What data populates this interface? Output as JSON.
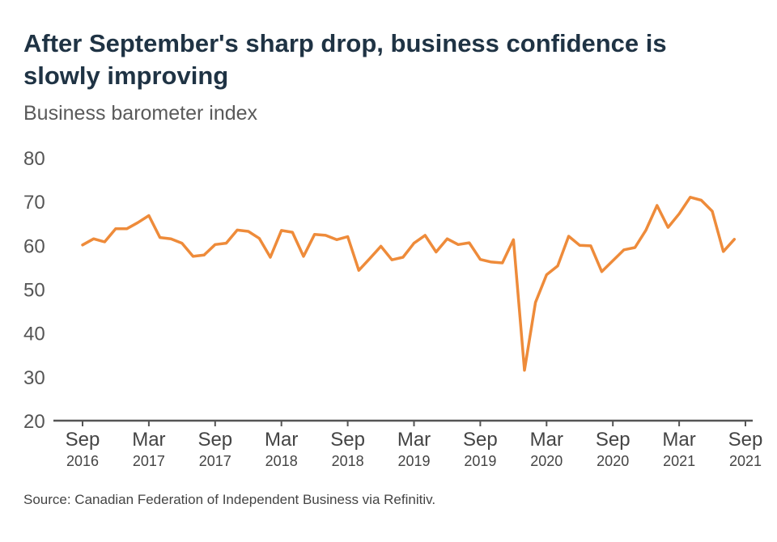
{
  "chart_data": {
    "type": "line",
    "title": "After September's sharp drop, business confidence is slowly improving",
    "subtitle": "Business barometer index",
    "source": "Source: Canadian Federation of Independent Business via Refinitiv.",
    "ylim": [
      20,
      80
    ],
    "yticks": [
      "20",
      "30",
      "40",
      "50",
      "60",
      "70",
      "80"
    ],
    "xticks": [
      {
        "month": "Sep",
        "year": "2016",
        "index": 0
      },
      {
        "month": "Mar",
        "year": "2017",
        "index": 6
      },
      {
        "month": "Sep",
        "year": "2017",
        "index": 12
      },
      {
        "month": "Mar",
        "year": "2018",
        "index": 18
      },
      {
        "month": "Sep",
        "year": "2018",
        "index": 24
      },
      {
        "month": "Mar",
        "year": "2019",
        "index": 30
      },
      {
        "month": "Sep",
        "year": "2019",
        "index": 36
      },
      {
        "month": "Mar",
        "year": "2020",
        "index": 42
      },
      {
        "month": "Sep",
        "year": "2020",
        "index": 48
      },
      {
        "month": "Mar",
        "year": "2021",
        "index": 54
      },
      {
        "month": "Sep",
        "year": "2021",
        "index": 60
      }
    ],
    "line_color": "#ee8b3a",
    "series": [
      {
        "values": [
          60.1,
          61.5,
          60.8,
          63.8,
          63.8,
          65.2,
          66.8,
          61.8,
          61.5,
          60.5,
          57.5,
          57.8,
          60.2,
          60.5,
          63.5,
          63.2,
          61.6,
          57.3,
          63.4,
          63.0,
          57.5,
          62.5,
          62.3,
          61.3,
          62.0,
          54.3,
          57.0,
          59.8,
          56.7,
          57.3,
          60.5,
          62.3,
          58.5,
          61.5,
          60.2,
          60.6,
          56.8,
          56.2,
          56.0,
          61.3,
          31.5,
          47.0,
          53.3,
          55.3,
          62.1,
          60.0,
          59.9,
          54.0,
          56.5,
          59.0,
          59.5,
          63.5,
          69.1,
          64.1,
          67.2,
          71.0,
          70.3,
          67.8,
          58.6,
          61.4
        ]
      }
    ],
    "x_domain": [
      0,
      60
    ]
  }
}
